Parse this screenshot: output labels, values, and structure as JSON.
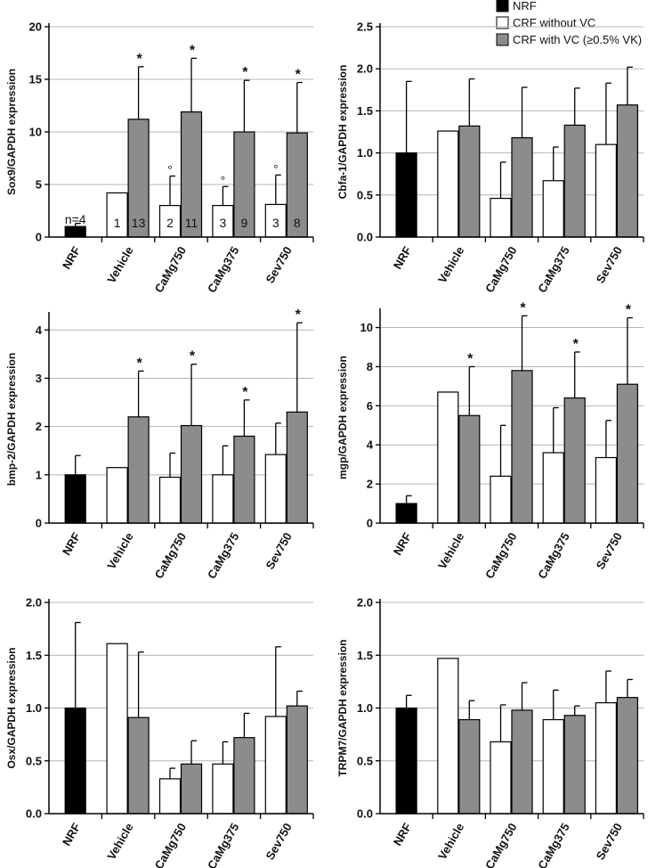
{
  "colors": {
    "NRF": "#000000",
    "CRF without VC": "#ffffff",
    "CRF with VC (≥0.5% VK)": "#8c8c8c",
    "grid": "#b4b4b4",
    "axis": "#000000"
  },
  "legend": {
    "items": [
      "NRF",
      "CRF without VC",
      "CRF with VC (≥0.5% VK)"
    ]
  },
  "chart_data": [
    {
      "type": "bar",
      "ylabel": "Sox9/GAPDH expression",
      "ylim": [
        0,
        20
      ],
      "yticks": [
        0,
        5,
        10,
        15,
        20
      ],
      "yticklabels": [
        "0",
        "5",
        "10",
        "15",
        "20"
      ],
      "categories": [
        "NRF",
        "Vehicle",
        "CaMg750",
        "CaMg375",
        "Sev750"
      ],
      "series": [
        {
          "name": "NRF",
          "values": [
            1.0,
            null,
            null,
            null,
            null
          ],
          "err": [
            0.3,
            null,
            null,
            null,
            null
          ]
        },
        {
          "name": "CRF without VC",
          "values": [
            null,
            4.2,
            3.0,
            3.0,
            3.1
          ],
          "err": [
            null,
            null,
            2.8,
            1.8,
            2.8
          ]
        },
        {
          "name": "CRF with VC (≥0.5% VK)",
          "values": [
            null,
            11.2,
            11.9,
            10.0,
            9.9
          ],
          "err": [
            null,
            5.0,
            5.1,
            4.9,
            4.8
          ]
        }
      ],
      "stars": [
        null,
        "*",
        "*",
        "*",
        "*"
      ],
      "circles": [
        null,
        null,
        "°",
        "°",
        "°"
      ],
      "n_labels": [
        [
          "n=4"
        ],
        [
          "1",
          "13"
        ],
        [
          "2",
          "11"
        ],
        [
          "3",
          "9"
        ],
        [
          "3",
          "8"
        ]
      ]
    },
    {
      "type": "bar",
      "ylabel": "Cbfa-1/GAPDH expression",
      "ylim": [
        0,
        2.5
      ],
      "yticks": [
        0,
        0.5,
        1.0,
        1.5,
        2.0,
        2.5
      ],
      "yticklabels": [
        "0.0",
        "0.5",
        "1.0",
        "1.5",
        "2.0",
        "2.5"
      ],
      "categories": [
        "NRF",
        "Vehicle",
        "CaMg750",
        "CaMg375",
        "Sev750"
      ],
      "series": [
        {
          "name": "NRF",
          "values": [
            1.0,
            null,
            null,
            null,
            null
          ],
          "err": [
            0.85,
            null,
            null,
            null,
            null
          ]
        },
        {
          "name": "CRF without VC",
          "values": [
            null,
            1.26,
            0.46,
            0.67,
            1.1
          ],
          "err": [
            null,
            null,
            0.43,
            0.4,
            0.73
          ]
        },
        {
          "name": "CRF with VC (≥0.5% VK)",
          "values": [
            null,
            1.32,
            1.18,
            1.33,
            1.57
          ],
          "err": [
            null,
            0.56,
            0.6,
            0.44,
            0.45
          ]
        }
      ],
      "stars": [
        null,
        null,
        null,
        null,
        null
      ]
    },
    {
      "type": "bar",
      "ylabel": "bmp-2/GAPDH expression",
      "ylim": [
        0,
        4.3
      ],
      "yticks": [
        0,
        1,
        2,
        3,
        4
      ],
      "yticklabels": [
        "0",
        "1",
        "2",
        "3",
        "4"
      ],
      "categories": [
        "NRF",
        "Vehicle",
        "CaMg750",
        "CaMg375",
        "Sev750"
      ],
      "series": [
        {
          "name": "NRF",
          "values": [
            1.0,
            null,
            null,
            null,
            null
          ],
          "err": [
            0.4,
            null,
            null,
            null,
            null
          ]
        },
        {
          "name": "CRF without VC",
          "values": [
            null,
            1.15,
            0.95,
            1.0,
            1.42
          ],
          "err": [
            null,
            null,
            0.5,
            0.6,
            0.65
          ]
        },
        {
          "name": "CRF with VC (≥0.5% VK)",
          "values": [
            null,
            2.2,
            2.02,
            1.8,
            2.3
          ],
          "err": [
            null,
            0.95,
            1.27,
            0.75,
            1.85
          ]
        }
      ],
      "stars": [
        null,
        "*",
        "*",
        "*",
        "*"
      ]
    },
    {
      "type": "bar",
      "ylabel": "mgp/GAPDH expression",
      "ylim": [
        0,
        10.8
      ],
      "yticks": [
        0,
        2,
        4,
        6,
        8,
        10
      ],
      "yticklabels": [
        "0",
        "2",
        "4",
        "6",
        "8",
        "10"
      ],
      "categories": [
        "NRF",
        "Vehicle",
        "CaMg750",
        "CaMg375",
        "Sev750"
      ],
      "series": [
        {
          "name": "NRF",
          "values": [
            1.0,
            null,
            null,
            null,
            null
          ],
          "err": [
            0.4,
            null,
            null,
            null,
            null
          ]
        },
        {
          "name": "CRF without VC",
          "values": [
            null,
            6.7,
            2.4,
            3.6,
            3.35
          ],
          "err": [
            null,
            null,
            2.6,
            2.3,
            1.9
          ]
        },
        {
          "name": "CRF with VC (≥0.5% VK)",
          "values": [
            null,
            5.5,
            7.8,
            6.4,
            7.1
          ],
          "err": [
            null,
            2.5,
            2.8,
            2.35,
            3.4
          ]
        }
      ],
      "stars": [
        null,
        "*",
        "*",
        "*",
        "*"
      ]
    },
    {
      "type": "bar",
      "ylabel": "Osx/GAPDH expression",
      "ylim": [
        0,
        2.0
      ],
      "yticks": [
        0,
        0.5,
        1.0,
        1.5,
        2.0
      ],
      "yticklabels": [
        "0.0",
        "0.5",
        "1.0",
        "1.5",
        "2.0"
      ],
      "categories": [
        "NRF",
        "Vehicle",
        "CaMg750",
        "CaMg375",
        "Sev750"
      ],
      "series": [
        {
          "name": "NRF",
          "values": [
            1.0,
            null,
            null,
            null,
            null
          ],
          "err": [
            0.81,
            null,
            null,
            null,
            null
          ]
        },
        {
          "name": "CRF without VC",
          "values": [
            null,
            1.61,
            0.33,
            0.47,
            0.92
          ],
          "err": [
            null,
            null,
            0.1,
            0.21,
            0.66
          ]
        },
        {
          "name": "CRF with VC (≥0.5% VK)",
          "values": [
            null,
            0.91,
            0.47,
            0.72,
            1.02
          ],
          "err": [
            null,
            0.62,
            0.22,
            0.23,
            0.14
          ]
        }
      ],
      "stars": [
        null,
        null,
        null,
        null,
        null
      ]
    },
    {
      "type": "bar",
      "ylabel": "TRPM7/GAPDH expression",
      "ylim": [
        0,
        2.0
      ],
      "yticks": [
        0,
        0.5,
        1.0,
        1.5,
        2.0
      ],
      "yticklabels": [
        "0.0",
        "0.5",
        "1.0",
        "1.5",
        "2.0"
      ],
      "categories": [
        "NRF",
        "Vehicle",
        "CaMg750",
        "CaMg375",
        "Sev750"
      ],
      "series": [
        {
          "name": "NRF",
          "values": [
            1.0,
            null,
            null,
            null,
            null
          ],
          "err": [
            0.12,
            null,
            null,
            null,
            null
          ]
        },
        {
          "name": "CRF without VC",
          "values": [
            null,
            1.47,
            0.68,
            0.89,
            1.05
          ],
          "err": [
            null,
            null,
            0.35,
            0.28,
            0.3
          ]
        },
        {
          "name": "CRF with VC (≥0.5% VK)",
          "values": [
            null,
            0.89,
            0.98,
            0.93,
            1.1
          ],
          "err": [
            null,
            0.18,
            0.26,
            0.09,
            0.17
          ]
        }
      ],
      "stars": [
        null,
        null,
        null,
        null,
        null
      ]
    }
  ]
}
